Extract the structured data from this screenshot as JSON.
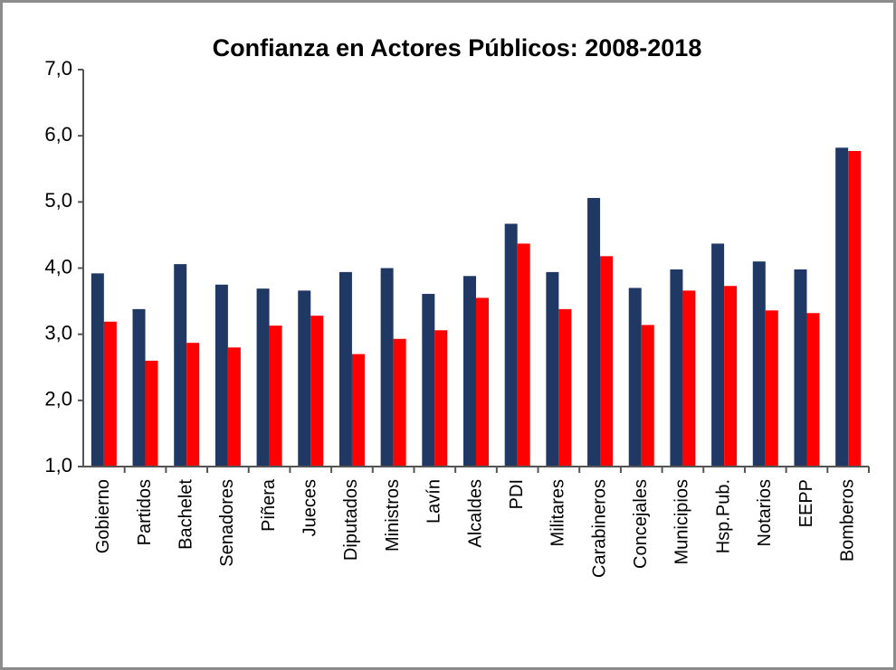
{
  "chart_data": {
    "type": "bar",
    "title": "Confianza en Actores Públicos: 2008-2018",
    "categories": [
      "Gobierno",
      "Partidos",
      "Bachelet",
      "Senadores",
      "Piñera",
      "Jueces",
      "Diputados",
      "Ministros",
      "Lavín",
      "Alcaldes",
      "PDI",
      "Militares",
      "Carabineros",
      "Concejales",
      "Municipios",
      "Hsp.Pub.",
      "Notarios",
      "EEPP",
      "Bomberos"
    ],
    "series": [
      {
        "color": "#1f3864",
        "values": [
          3.92,
          3.38,
          4.06,
          3.75,
          3.69,
          3.66,
          3.94,
          4.0,
          3.61,
          3.88,
          4.67,
          3.94,
          5.06,
          3.7,
          3.98,
          4.37,
          4.1,
          3.98,
          5.82
        ]
      },
      {
        "color": "#ff0000",
        "values": [
          3.19,
          2.6,
          2.87,
          2.8,
          3.13,
          3.28,
          2.7,
          2.93,
          3.06,
          3.55,
          4.37,
          3.38,
          4.18,
          3.14,
          3.66,
          3.73,
          3.36,
          3.32,
          5.77
        ]
      }
    ],
    "ylim": [
      1,
      7
    ],
    "yticks": [
      {
        "value": 1,
        "label": "1,0"
      },
      {
        "value": 2,
        "label": "2,0"
      },
      {
        "value": 3,
        "label": "3,0"
      },
      {
        "value": 4,
        "label": "4,0"
      },
      {
        "value": 5,
        "label": "5,0"
      },
      {
        "value": 6,
        "label": "6,0"
      },
      {
        "value": 7,
        "label": "7,0"
      }
    ],
    "grid": false
  }
}
